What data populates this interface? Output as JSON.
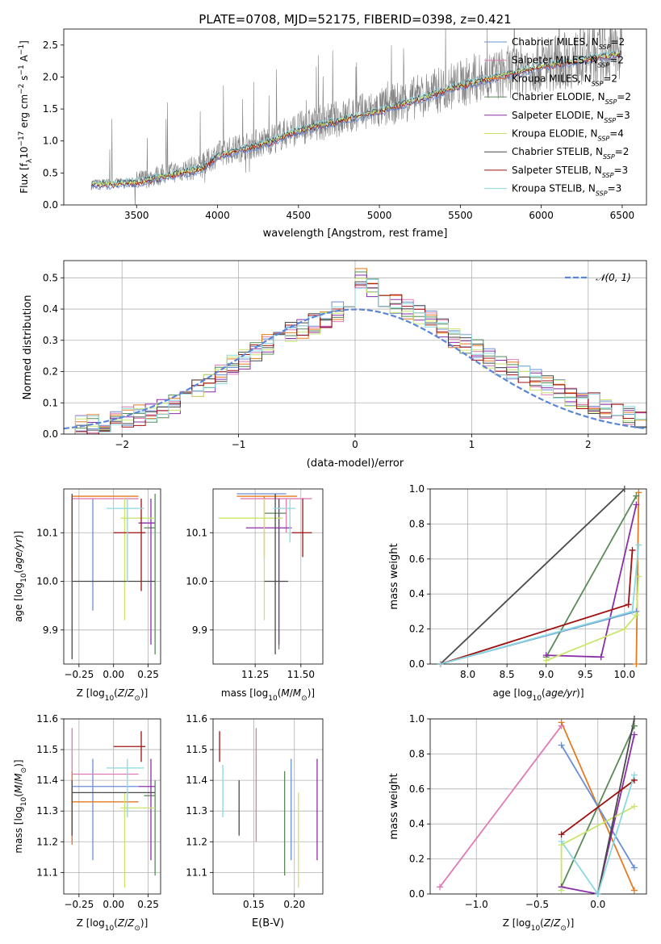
{
  "figure": {
    "title": "PLATE=0708, MJD=52175, FIBERID=0398, z=0.421"
  },
  "colors": {
    "data": "#808080",
    "cb_miles": "#6a8fd8",
    "sp_miles": "#e07ab5",
    "kr_miles": "#e47a1f",
    "cb_elodie": "#5a8a5a",
    "sp_elodie": "#8a2ea8",
    "kr_elodie": "#c9e66b",
    "cb_stelib": "#4a4a4a",
    "sp_stelib": "#a01010",
    "kr_stelib": "#8ad8e0"
  },
  "chart_data": [
    {
      "id": "spectrum",
      "type": "line",
      "xlabel": "wavelength [Angstrom, rest frame]",
      "ylabel": "Flux [f_λ 10^-17 erg cm^-2 s^-1 A^-1]",
      "xlim": [
        3050,
        6650
      ],
      "ylim": [
        0,
        2.75
      ],
      "xticks": [
        3500,
        4000,
        4500,
        5000,
        5500,
        6000,
        6500
      ],
      "yticks": [
        0.0,
        0.5,
        1.0,
        1.5,
        2.0,
        2.5
      ],
      "data_range": [
        3220,
        6500
      ],
      "data_trend": [
        [
          3220,
          0.35
        ],
        [
          3500,
          0.38
        ],
        [
          3700,
          0.5
        ],
        [
          3900,
          0.6
        ],
        [
          4000,
          0.8
        ],
        [
          4300,
          1.0
        ],
        [
          4500,
          1.2
        ],
        [
          5000,
          1.5
        ],
        [
          5500,
          1.9
        ],
        [
          6000,
          2.2
        ],
        [
          6500,
          2.4
        ]
      ],
      "legend": [
        {
          "label": "Chabrier MILES, N_SSP=2",
          "color": "cb_miles"
        },
        {
          "label": "Salpeter MILES, N_SSP=2",
          "color": "sp_miles"
        },
        {
          "label": "Kroupa MILES, N_SSP=2",
          "color": "kr_miles"
        },
        {
          "label": "Chabrier ELODIE, N_SSP=2",
          "color": "cb_elodie"
        },
        {
          "label": "Salpeter ELODIE, N_SSP=3",
          "color": "sp_elodie"
        },
        {
          "label": "Kroupa ELODIE, N_SSP=4",
          "color": "kr_elodie"
        },
        {
          "label": "Chabrier STELIB, N_SSP=2",
          "color": "cb_stelib"
        },
        {
          "label": "Salpeter STELIB, N_SSP=3",
          "color": "sp_stelib"
        },
        {
          "label": "Kroupa STELIB, N_SSP=3",
          "color": "kr_stelib"
        }
      ]
    },
    {
      "id": "residuals",
      "type": "histogram",
      "xlabel": "(data-model)/error",
      "ylabel": "Normed distribution",
      "xlim": [
        -2.5,
        2.5
      ],
      "ylim": [
        0,
        0.555
      ],
      "xticks": [
        -2,
        -1,
        0,
        1,
        2
      ],
      "yticks": [
        0.0,
        0.1,
        0.2,
        0.3,
        0.4,
        0.5
      ],
      "bin_width": 0.1,
      "gaussian_legend": "𝒩(0, 1)",
      "hist_centers": [
        [
          -2.45,
          0.02
        ],
        [
          -2.25,
          0.03
        ],
        [
          -2.05,
          0.05
        ],
        [
          -1.85,
          0.06
        ],
        [
          -1.65,
          0.08
        ],
        [
          -1.45,
          0.12
        ],
        [
          -1.25,
          0.16
        ],
        [
          -1.05,
          0.22
        ],
        [
          -0.85,
          0.26
        ],
        [
          -0.65,
          0.31
        ],
        [
          -0.45,
          0.34
        ],
        [
          -0.25,
          0.37
        ],
        [
          -0.05,
          0.41
        ],
        [
          0.05,
          0.5
        ],
        [
          0.25,
          0.44
        ],
        [
          0.45,
          0.4
        ],
        [
          0.65,
          0.36
        ],
        [
          0.85,
          0.31
        ],
        [
          1.05,
          0.27
        ],
        [
          1.25,
          0.22
        ],
        [
          1.45,
          0.19
        ],
        [
          1.65,
          0.16
        ],
        [
          1.85,
          0.12
        ],
        [
          2.05,
          0.1
        ],
        [
          2.25,
          0.07
        ],
        [
          2.45,
          0.05
        ]
      ]
    },
    {
      "id": "age_vs_Z",
      "type": "errorbar",
      "xlabel": "Z [log10(Z/Z⊙)]",
      "ylabel": "age [log10(age/yr)]",
      "xlim": [
        -0.36,
        0.34
      ],
      "ylim": [
        9.83,
        10.19
      ],
      "xticks": [
        -0.25,
        0.0,
        0.25
      ],
      "xticklabels": [
        "−0.25",
        "0.00",
        "0.25"
      ],
      "yticks": [
        9.9,
        10.0,
        10.1
      ],
      "yticklabels": [
        "9.9",
        "10.0",
        "10.1"
      ],
      "points": [
        {
          "c": "cb_miles",
          "x": -0.15,
          "xe": [
            -0.15,
            -0.15
          ],
          "y": 10.1,
          "ye": [
            9.94,
            10.17
          ]
        },
        {
          "c": "sp_miles",
          "x": -0.3,
          "xe": [
            -0.3,
            0.18
          ],
          "y": 10.17,
          "ye": [
            10.0,
            10.17
          ]
        },
        {
          "c": "kr_miles",
          "x": -0.3,
          "xe": [
            -0.3,
            0.18
          ],
          "y": 10.175,
          "ye": [
            10.02,
            10.175
          ]
        },
        {
          "c": "cb_elodie",
          "x": 0.3,
          "xe": [
            0.22,
            0.3
          ],
          "y": 10.11,
          "ye": [
            9.85,
            10.18
          ]
        },
        {
          "c": "sp_elodie",
          "x": 0.27,
          "xe": [
            0.18,
            0.3
          ],
          "y": 10.12,
          "ye": [
            9.87,
            10.17
          ]
        },
        {
          "c": "kr_elodie",
          "x": 0.08,
          "xe": [
            0.05,
            0.3
          ],
          "y": 10.13,
          "ye": [
            9.92,
            10.17
          ]
        },
        {
          "c": "cb_stelib",
          "x": -0.3,
          "xe": [
            -0.3,
            0.3
          ],
          "y": 10.0,
          "ye": [
            9.84,
            10.18
          ]
        },
        {
          "c": "sp_stelib",
          "x": 0.2,
          "xe": [
            0.0,
            0.23
          ],
          "y": 10.1,
          "ye": [
            9.98,
            10.17
          ]
        },
        {
          "c": "kr_stelib",
          "x": 0.1,
          "xe": [
            -0.05,
            0.22
          ],
          "y": 10.15,
          "ye": [
            10.0,
            10.17
          ]
        }
      ]
    },
    {
      "id": "age_vs_mass",
      "type": "errorbar",
      "xlabel": "mass [log10(M/M⊙)]",
      "ylabel": "",
      "xlim": [
        11.02,
        11.62
      ],
      "ylim": [
        9.83,
        10.19
      ],
      "xticks": [
        11.25,
        11.5
      ],
      "xticklabels": [
        "11.25",
        "11.50"
      ],
      "yticks": [
        9.9,
        10.0,
        10.1
      ],
      "yticklabels": [
        "9.9",
        "10.0",
        "10.1"
      ],
      "points": [
        {
          "c": "cb_miles",
          "x": 11.36,
          "xe": [
            11.15,
            11.42
          ],
          "y": 10.18,
          "ye": [
            10.17,
            10.18
          ]
        },
        {
          "c": "sp_miles",
          "x": 11.42,
          "xe": [
            11.17,
            11.56
          ],
          "y": 10.17,
          "ye": [
            10.1,
            10.17
          ]
        },
        {
          "c": "kr_miles",
          "x": 11.3,
          "xe": [
            11.15,
            11.48
          ],
          "y": 10.175,
          "ye": [
            10.05,
            10.175
          ]
        },
        {
          "c": "cb_elodie",
          "x": 11.38,
          "xe": [
            11.3,
            11.42
          ],
          "y": 10.14,
          "ye": [
            9.86,
            10.17
          ]
        },
        {
          "c": "sp_elodie",
          "x": 11.38,
          "xe": [
            11.2,
            11.45
          ],
          "y": 10.11,
          "ye": [
            9.87,
            10.17
          ]
        },
        {
          "c": "kr_elodie",
          "x": 11.3,
          "xe": [
            11.05,
            11.4
          ],
          "y": 10.13,
          "ye": [
            9.92,
            10.17
          ]
        },
        {
          "c": "cb_stelib",
          "x": 11.36,
          "xe": [
            11.3,
            11.43
          ],
          "y": 10.0,
          "ye": [
            9.85,
            10.18
          ]
        },
        {
          "c": "sp_stelib",
          "x": 11.51,
          "xe": [
            11.45,
            11.56
          ],
          "y": 10.1,
          "ye": [
            10.05,
            10.17
          ]
        },
        {
          "c": "kr_stelib",
          "x": 11.44,
          "xe": [
            11.35,
            11.47
          ],
          "y": 10.15,
          "ye": [
            10.08,
            10.17
          ]
        }
      ]
    },
    {
      "id": "massweight_vs_age",
      "type": "line",
      "xlabel": "age [log10(age/yr)]",
      "ylabel": "mass weight",
      "xlim": [
        7.52,
        10.28
      ],
      "ylim": [
        0,
        1.0
      ],
      "xticks": [
        8.0,
        8.5,
        9.0,
        9.5,
        10.0
      ],
      "xticklabels": [
        "8.0",
        "8.5",
        "9.0",
        "9.5",
        "10.0"
      ],
      "yticks": [
        0.0,
        0.2,
        0.4,
        0.6,
        0.8,
        1.0
      ],
      "yticklabels": [
        "0.0",
        "0.2",
        "0.4",
        "0.6",
        "0.8",
        "1.0"
      ],
      "series": [
        {
          "c": "cb_miles",
          "x": [
            7.65,
            10.15
          ],
          "y": [
            0.0,
            0.3
          ]
        },
        {
          "c": "kr_miles",
          "x": [
            10.15,
            10.18
          ],
          "y": [
            0.0,
            0.98
          ]
        },
        {
          "c": "cb_elodie",
          "x": [
            9.0,
            10.15
          ],
          "y": [
            0.04,
            0.96
          ]
        },
        {
          "c": "sp_elodie",
          "x": [
            9.0,
            9.7,
            10.15
          ],
          "y": [
            0.05,
            0.04,
            0.91
          ]
        },
        {
          "c": "kr_elodie",
          "x": [
            9.0,
            10.0,
            10.15,
            10.18
          ],
          "y": [
            0.02,
            0.2,
            0.28,
            0.5
          ]
        },
        {
          "c": "cb_stelib",
          "x": [
            7.65,
            10.0
          ],
          "y": [
            0.0,
            1.0
          ]
        },
        {
          "c": "sp_stelib",
          "x": [
            7.65,
            10.05,
            10.1
          ],
          "y": [
            0.0,
            0.34,
            0.65
          ]
        },
        {
          "c": "kr_stelib",
          "x": [
            7.65,
            10.1,
            10.18
          ],
          "y": [
            0.0,
            0.3,
            0.68
          ]
        }
      ]
    },
    {
      "id": "mass_vs_Z",
      "type": "errorbar",
      "xlabel": "Z [log10(Z/Z⊙)]",
      "ylabel": "mass [log10(M/M⊙)]",
      "xlim": [
        -0.36,
        0.34
      ],
      "ylim": [
        11.03,
        11.6
      ],
      "xticks": [
        -0.25,
        0.0,
        0.25
      ],
      "xticklabels": [
        "−0.25",
        "0.00",
        "0.25"
      ],
      "yticks": [
        11.1,
        11.2,
        11.3,
        11.4,
        11.5,
        11.6
      ],
      "yticklabels": [
        "11.1",
        "11.2",
        "11.3",
        "11.4",
        "11.5",
        "11.6"
      ],
      "points": [
        {
          "c": "cb_miles",
          "x": -0.15,
          "xe": [
            -0.3,
            0.18
          ],
          "y": 11.38,
          "ye": [
            11.14,
            11.47
          ]
        },
        {
          "c": "sp_miles",
          "x": -0.3,
          "xe": [
            -0.3,
            0.18
          ],
          "y": 11.42,
          "ye": [
            11.2,
            11.57
          ]
        },
        {
          "c": "kr_miles",
          "x": -0.3,
          "xe": [
            -0.3,
            0.18
          ],
          "y": 11.33,
          "ye": [
            11.19,
            11.43
          ]
        },
        {
          "c": "cb_elodie",
          "x": 0.3,
          "xe": [
            0.22,
            0.3
          ],
          "y": 11.35,
          "ye": [
            11.09,
            11.4
          ]
        },
        {
          "c": "sp_elodie",
          "x": 0.27,
          "xe": [
            0.18,
            0.3
          ],
          "y": 11.38,
          "ye": [
            11.14,
            11.47
          ]
        },
        {
          "c": "kr_elodie",
          "x": 0.08,
          "xe": [
            0.05,
            0.3
          ],
          "y": 11.31,
          "ye": [
            11.05,
            11.36
          ]
        },
        {
          "c": "cb_stelib",
          "x": -0.3,
          "xe": [
            -0.3,
            0.3
          ],
          "y": 11.36,
          "ye": [
            11.22,
            11.4
          ]
        },
        {
          "c": "sp_stelib",
          "x": 0.2,
          "xe": [
            0.0,
            0.23
          ],
          "y": 11.51,
          "ye": [
            11.46,
            11.56
          ]
        },
        {
          "c": "kr_stelib",
          "x": 0.1,
          "xe": [
            -0.05,
            0.22
          ],
          "y": 11.44,
          "ye": [
            11.28,
            11.47
          ]
        }
      ]
    },
    {
      "id": "mass_vs_ebv",
      "type": "errorbar",
      "xlabel": "E(B-V)",
      "ylabel": "",
      "xlim": [
        0.1,
        0.235
      ],
      "ylim": [
        11.03,
        11.6
      ],
      "xticks": [
        0.15,
        0.2
      ],
      "xticklabels": [
        "0.15",
        "0.20"
      ],
      "yticks": [
        11.1,
        11.2,
        11.3,
        11.4,
        11.5,
        11.6
      ],
      "yticklabels": [
        "11.1",
        "11.2",
        "11.3",
        "11.4",
        "11.5",
        "11.6"
      ],
      "points": [
        {
          "c": "sp_stelib",
          "x": 0.108,
          "y": 11.51,
          "ye": [
            11.46,
            11.56
          ]
        },
        {
          "c": "kr_stelib",
          "x": 0.112,
          "y": 11.38,
          "ye": [
            11.28,
            11.45
          ]
        },
        {
          "c": "cb_stelib",
          "x": 0.132,
          "y": 11.3,
          "ye": [
            11.22,
            11.4
          ]
        },
        {
          "c": "sp_miles",
          "x": 0.153,
          "y": 11.42,
          "ye": [
            11.2,
            11.57
          ]
        },
        {
          "c": "cb_elodie",
          "x": 0.188,
          "y": 11.26,
          "ye": [
            11.09,
            11.43
          ]
        },
        {
          "c": "cb_miles",
          "x": 0.196,
          "y": 11.38,
          "ye": [
            11.14,
            11.47
          ]
        },
        {
          "c": "kr_elodie",
          "x": 0.205,
          "y": 11.2,
          "ye": [
            11.05,
            11.36
          ]
        },
        {
          "c": "sp_elodie",
          "x": 0.228,
          "y": 11.3,
          "ye": [
            11.14,
            11.47
          ]
        }
      ]
    },
    {
      "id": "massweight_vs_Z",
      "type": "line",
      "xlabel": "Z [log10(Z/Z⊙)]",
      "ylabel": "mass weight",
      "xlim": [
        -1.38,
        0.4
      ],
      "ylim": [
        0,
        1.0
      ],
      "xticks": [
        -1.0,
        -0.5,
        0.0
      ],
      "xticklabels": [
        "−1.0",
        "−0.5",
        "0.0"
      ],
      "yticks": [
        0.0,
        0.2,
        0.4,
        0.6,
        0.8,
        1.0
      ],
      "yticklabels": [
        "0.0",
        "0.2",
        "0.4",
        "0.6",
        "0.8",
        "1.0"
      ],
      "series": [
        {
          "c": "sp_miles",
          "x": [
            -1.3,
            -0.3
          ],
          "y": [
            0.04,
            0.96
          ]
        },
        {
          "c": "kr_miles",
          "x": [
            -0.3,
            0.3
          ],
          "y": [
            0.98,
            0.02
          ]
        },
        {
          "c": "cb_miles",
          "x": [
            -0.3,
            0.3
          ],
          "y": [
            0.85,
            0.15
          ]
        },
        {
          "c": "cb_elodie",
          "x": [
            -0.3,
            0.3
          ],
          "y": [
            0.04,
            0.96
          ]
        },
        {
          "c": "sp_elodie",
          "x": [
            -0.3,
            0.0,
            0.3
          ],
          "y": [
            0.04,
            0.0,
            0.91
          ]
        },
        {
          "c": "kr_elodie",
          "x": [
            -0.3,
            -0.3,
            0.3
          ],
          "y": [
            0.02,
            0.28,
            0.5
          ]
        },
        {
          "c": "cb_stelib",
          "x": [
            0.0,
            0.3
          ],
          "y": [
            0.0,
            1.0
          ]
        },
        {
          "c": "sp_stelib",
          "x": [
            -0.3,
            0.3
          ],
          "y": [
            0.34,
            0.65
          ]
        },
        {
          "c": "kr_stelib",
          "x": [
            -0.3,
            0.0,
            0.3
          ],
          "y": [
            0.3,
            0.0,
            0.68
          ]
        }
      ]
    }
  ]
}
